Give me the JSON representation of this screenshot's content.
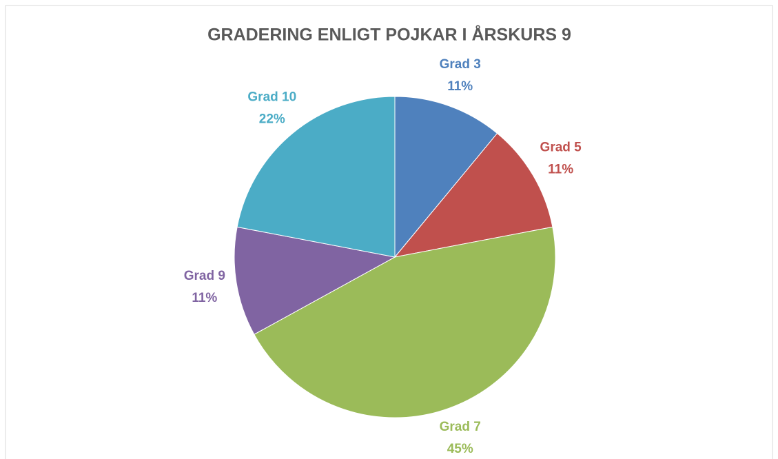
{
  "chart_data": {
    "type": "pie",
    "title": "GRADERING ENLIGT POJKAR I ÅRSKURS 9",
    "categories": [
      "Grad 3",
      "Grad 5",
      "Grad 7",
      "Grad 9",
      "Grad 10"
    ],
    "values": [
      11,
      11,
      45,
      11,
      22
    ],
    "value_labels": [
      "11%",
      "11%",
      "45%",
      "11%",
      "22%"
    ],
    "colors": [
      "#4f81bd",
      "#c0504d",
      "#9bbb59",
      "#8064a2",
      "#4bacc6"
    ]
  }
}
